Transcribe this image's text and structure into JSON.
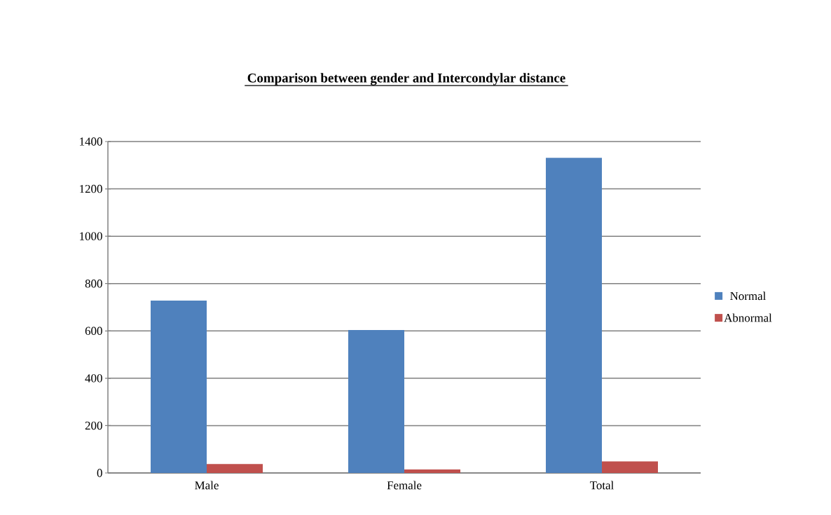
{
  "chart_data": {
    "type": "bar",
    "title": "Comparison between gender and Intercondylar distance",
    "categories": [
      "Male",
      "Female",
      "Total"
    ],
    "series": [
      {
        "name": "Normal",
        "color": "#4f81bd",
        "values": [
          728,
          604,
          1331
        ]
      },
      {
        "name": "Abnormal",
        "color": "#c0504d",
        "values": [
          38,
          15,
          49
        ]
      }
    ],
    "ylim": [
      0,
      1400
    ],
    "yticks": [
      0,
      200,
      400,
      600,
      800,
      1000,
      1200,
      1400
    ],
    "grid": "y",
    "legend": "right"
  }
}
